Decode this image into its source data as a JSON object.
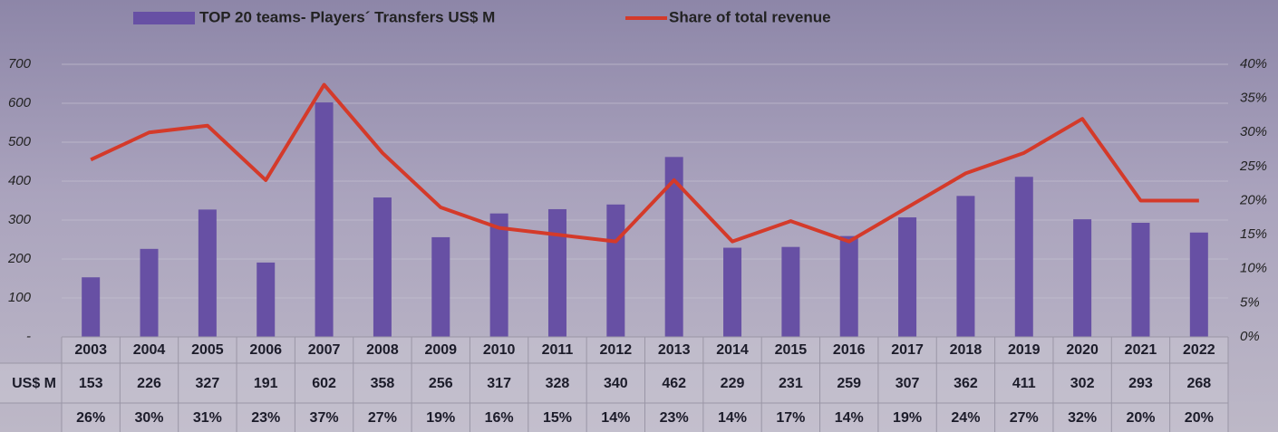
{
  "chart_data": {
    "type": "bar-line",
    "categories": [
      "2003",
      "2004",
      "2005",
      "2006",
      "2007",
      "2008",
      "2009",
      "2010",
      "2011",
      "2012",
      "2013",
      "2014",
      "2015",
      "2016",
      "2017",
      "2018",
      "2019",
      "2020",
      "2021",
      "2022"
    ],
    "series": [
      {
        "name": "TOP 20 teams- Players´ Transfers US$ M",
        "color": "#6750a4",
        "type": "bar",
        "values": [
          153,
          226,
          327,
          191,
          602,
          358,
          256,
          317,
          328,
          340,
          462,
          229,
          231,
          259,
          307,
          362,
          411,
          302,
          293,
          268
        ]
      },
      {
        "name": "Share of total revenue",
        "color": "#d43a2a",
        "type": "line",
        "axis": "y2",
        "values": [
          26,
          30,
          31,
          23,
          37,
          27,
          19,
          16,
          15,
          14,
          23,
          14,
          17,
          14,
          19,
          24,
          27,
          32,
          20,
          20
        ],
        "value_labels": [
          "26%",
          "30%",
          "31%",
          "23%",
          "37%",
          "27%",
          "19%",
          "16%",
          "15%",
          "14%",
          "23%",
          "14%",
          "17%",
          "14%",
          "19%",
          "24%",
          "27%",
          "32%",
          "20%",
          "20%"
        ]
      }
    ],
    "table_row_label": "US$ M",
    "ylim": [
      0,
      700
    ],
    "yticks": [
      {
        "value": 0,
        "label": "-"
      },
      100,
      200,
      300,
      400,
      500,
      600,
      700
    ],
    "y2lim": [
      0,
      40
    ],
    "y2ticks": [
      {
        "value": 0,
        "label": "0%"
      },
      {
        "value": 5,
        "label": "5%"
      },
      {
        "value": 10,
        "label": "10%"
      },
      {
        "value": 15,
        "label": "15%"
      },
      {
        "value": 20,
        "label": "20%"
      },
      {
        "value": 25,
        "label": "25%"
      },
      {
        "value": 30,
        "label": "30%"
      },
      {
        "value": 35,
        "label": "35%"
      },
      {
        "value": 40,
        "label": "40%"
      }
    ],
    "grid": true
  }
}
